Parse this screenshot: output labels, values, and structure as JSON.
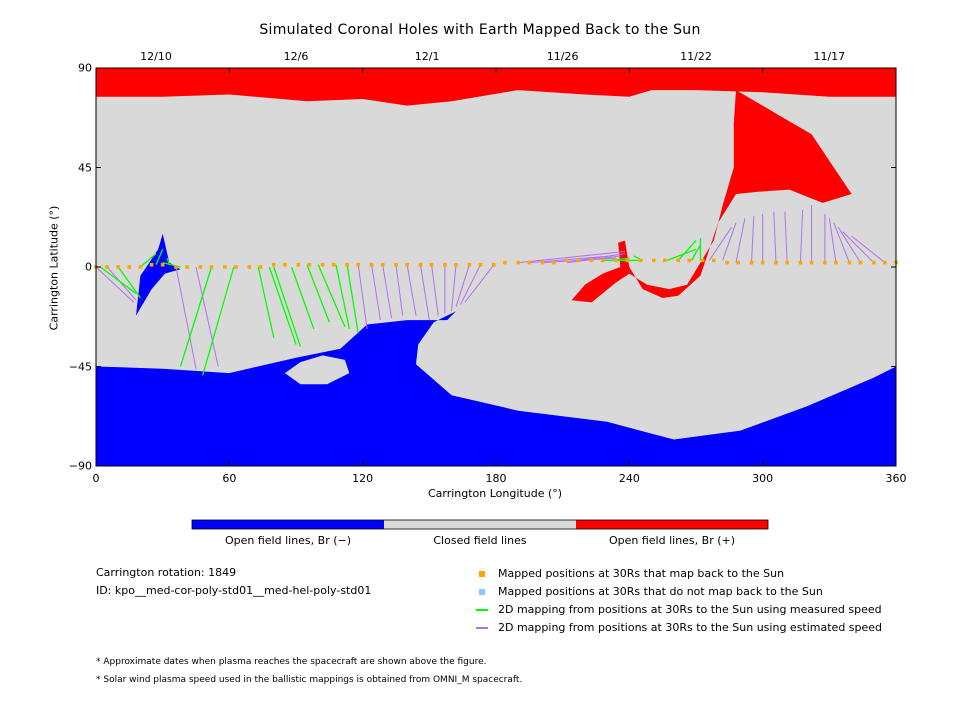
{
  "chart_data": {
    "type": "map",
    "title": "Simulated Coronal Holes with Earth Mapped Back to the Sun",
    "xlabel": "Carrington Longitude (°)",
    "ylabel": "Carrington Latitude (°)",
    "xlim": [
      0,
      360
    ],
    "ylim": [
      -90,
      90
    ],
    "x_ticks": [
      "0",
      "60",
      "120",
      "180",
      "240",
      "300",
      "360"
    ],
    "y_ticks": [
      "90",
      "45",
      "0",
      "−45",
      "−90"
    ],
    "top_date_ticks": [
      {
        "lon": 27,
        "label": "12/10"
      },
      {
        "lon": 90,
        "label": "12/6"
      },
      {
        "lon": 149,
        "label": "12/1"
      },
      {
        "lon": 210,
        "label": "11/26"
      },
      {
        "lon": 270,
        "label": "11/22"
      },
      {
        "lon": 330,
        "label": "11/17"
      }
    ],
    "colorbar": [
      {
        "label": "Open field lines, Br (−)",
        "color": "#0000ff"
      },
      {
        "label": "Closed field lines",
        "color": "#d9d9d9"
      },
      {
        "label": "Open field lines, Br (+)",
        "color": "#ff0000"
      }
    ],
    "info": {
      "rotation": "Carrington rotation: 1849",
      "id": "ID: kpo__med-cor-poly-std01__med-hel-poly-std01"
    },
    "legend": [
      {
        "label": "Mapped positions at 30Rs that map back to the Sun",
        "color": "#ffa500",
        "kind": "square"
      },
      {
        "label": "Mapped positions at 30Rs that do not map back to the Sun",
        "color": "#87cefa",
        "kind": "square"
      },
      {
        "label": "2D mapping from positions at 30Rs to the Sun using measured speed",
        "color": "#00ff00",
        "kind": "line"
      },
      {
        "label": "2D mapping from positions at 30Rs to the Sun using estimated speed",
        "color": "#b070f0",
        "kind": "line"
      }
    ],
    "footnotes": [
      "* Approximate dates when plasma reaches the spacecraft are shown above the figure.",
      "* Solar wind plasma speed used in the ballistic mappings is obtained from OMNI_M spacecraft."
    ],
    "regions": {
      "positive": [
        [
          [
            0,
            90
          ],
          [
            360,
            90
          ],
          [
            360,
            77
          ],
          [
            330,
            77
          ],
          [
            300,
            79
          ],
          [
            270,
            80
          ],
          [
            250,
            80
          ],
          [
            240,
            77
          ],
          [
            220,
            78
          ],
          [
            190,
            80
          ],
          [
            160,
            75
          ],
          [
            140,
            73
          ],
          [
            120,
            76
          ],
          [
            95,
            75
          ],
          [
            60,
            78
          ],
          [
            30,
            77
          ],
          [
            0,
            77
          ]
        ],
        [
          [
            288,
            80
          ],
          [
            305,
            70
          ],
          [
            322,
            60
          ],
          [
            332,
            45
          ],
          [
            340,
            33
          ],
          [
            327,
            29
          ],
          [
            312,
            35
          ],
          [
            298,
            34
          ],
          [
            288,
            33
          ],
          [
            280,
            20
          ],
          [
            272,
            -4
          ],
          [
            262,
            -13
          ],
          [
            255,
            -14
          ],
          [
            246,
            -10
          ],
          [
            240,
            0
          ],
          [
            238,
            12
          ],
          [
            235,
            11
          ],
          [
            236,
            0
          ],
          [
            228,
            -3
          ],
          [
            220,
            -8
          ],
          [
            214,
            -15
          ],
          [
            223,
            -16
          ],
          [
            234,
            -7
          ],
          [
            240,
            -3
          ],
          [
            248,
            -8
          ],
          [
            258,
            -10
          ],
          [
            266,
            -8
          ],
          [
            272,
            2
          ],
          [
            278,
            12
          ],
          [
            282,
            28
          ],
          [
            287,
            45
          ],
          [
            287,
            65
          ]
        ]
      ],
      "negative": [
        [
          [
            0,
            -45
          ],
          [
            30,
            -46
          ],
          [
            60,
            -48
          ],
          [
            90,
            -41
          ],
          [
            110,
            -37
          ],
          [
            122,
            -26
          ],
          [
            140,
            -24
          ],
          [
            158,
            -24
          ],
          [
            162,
            -20
          ],
          [
            152,
            -25
          ],
          [
            145,
            -35
          ],
          [
            144,
            -44
          ],
          [
            160,
            -58
          ],
          [
            190,
            -65
          ],
          [
            230,
            -70
          ],
          [
            260,
            -78
          ],
          [
            290,
            -74
          ],
          [
            320,
            -63
          ],
          [
            350,
            -50
          ],
          [
            360,
            -45
          ],
          [
            360,
            -90
          ],
          [
            0,
            -90
          ]
        ],
        [
          [
            18,
            -22
          ],
          [
            20,
            -4
          ],
          [
            24,
            2
          ],
          [
            28,
            8
          ],
          [
            30,
            15
          ],
          [
            33,
            2
          ],
          [
            38,
            -1
          ],
          [
            31,
            -3
          ],
          [
            25,
            -10
          ]
        ]
      ],
      "closed_hole": [
        [
          85,
          -48
        ],
        [
          92,
          -43
        ],
        [
          102,
          -40
        ],
        [
          112,
          -42
        ],
        [
          114,
          -48
        ],
        [
          104,
          -53
        ],
        [
          92,
          -53
        ]
      ]
    },
    "mapped_points_lon": [
      0,
      5,
      10,
      15,
      20,
      25,
      30,
      36,
      41,
      47,
      52,
      58,
      63,
      69,
      74,
      80,
      85,
      91,
      96,
      102,
      107,
      113,
      118,
      124,
      129,
      135,
      140,
      146,
      151,
      157,
      162,
      168,
      173,
      179,
      184,
      190,
      195,
      201,
      206,
      212,
      217,
      223,
      228,
      234,
      239,
      245,
      251,
      256,
      262,
      267,
      273,
      278,
      284,
      289,
      295,
      300,
      306,
      311,
      317,
      322,
      328,
      333,
      339,
      344,
      350,
      355,
      360
    ],
    "mapped_points_lat": [
      0,
      0,
      0,
      0,
      0,
      1,
      1,
      0,
      0,
      0,
      0,
      0,
      0,
      0,
      0,
      1,
      1,
      1,
      1,
      1,
      1,
      1,
      1,
      1,
      1,
      1,
      1,
      1,
      1,
      1,
      1,
      1,
      1,
      1,
      2,
      2,
      2,
      2,
      2,
      3,
      3,
      3,
      3,
      3,
      3,
      3,
      3,
      3,
      3,
      3,
      3,
      3,
      2,
      2,
      2,
      2,
      2,
      2,
      2,
      2,
      2,
      2,
      2,
      2,
      2,
      2,
      2
    ],
    "mapping_lines_measured": [
      [
        [
          2,
          0
        ],
        [
          18,
          -12
        ]
      ],
      [
        [
          10,
          0
        ],
        [
          20,
          -14
        ]
      ],
      [
        [
          20,
          0
        ],
        [
          27,
          6
        ]
      ],
      [
        [
          27,
          1
        ],
        [
          30,
          8
        ]
      ],
      [
        [
          33,
          1
        ],
        [
          32,
          4
        ]
      ],
      [
        [
          38,
          0
        ],
        [
          30,
          2
        ]
      ],
      [
        [
          52,
          0
        ],
        [
          38,
          -45
        ]
      ],
      [
        [
          62,
          0
        ],
        [
          48,
          -49
        ]
      ],
      [
        [
          73,
          0
        ],
        [
          80,
          -32
        ]
      ],
      [
        [
          78,
          0
        ],
        [
          90,
          -35
        ]
      ],
      [
        [
          80,
          0
        ],
        [
          92,
          -36
        ]
      ],
      [
        [
          88,
          0
        ],
        [
          98,
          -28
        ]
      ],
      [
        [
          95,
          1
        ],
        [
          105,
          -25
        ]
      ],
      [
        [
          100,
          1
        ],
        [
          112,
          -27
        ]
      ],
      [
        [
          108,
          1
        ],
        [
          114,
          -28
        ]
      ],
      [
        [
          113,
          1
        ],
        [
          118,
          -30
        ]
      ],
      [
        [
          228,
          3
        ],
        [
          238,
          3
        ]
      ],
      [
        [
          232,
          3
        ],
        [
          240,
          4
        ]
      ],
      [
        [
          238,
          3
        ],
        [
          244,
          3
        ]
      ],
      [
        [
          246,
          3
        ],
        [
          242,
          5
        ]
      ],
      [
        [
          257,
          3
        ],
        [
          270,
          8
        ]
      ],
      [
        [
          262,
          3
        ],
        [
          270,
          12
        ]
      ],
      [
        [
          268,
          3
        ],
        [
          272,
          10
        ]
      ],
      [
        [
          272,
          3
        ],
        [
          272,
          13
        ]
      ]
    ],
    "mapping_lines_estimated": [
      [
        [
          0,
          0
        ],
        [
          17,
          -16
        ]
      ],
      [
        [
          5,
          0
        ],
        [
          18,
          -15
        ]
      ],
      [
        [
          36,
          0
        ],
        [
          45,
          -46
        ]
      ],
      [
        [
          45,
          0
        ],
        [
          55,
          -45
        ]
      ],
      [
        [
          118,
          1
        ],
        [
          122,
          -28
        ]
      ],
      [
        [
          124,
          1
        ],
        [
          128,
          -24
        ]
      ],
      [
        [
          129,
          1
        ],
        [
          133,
          -23
        ]
      ],
      [
        [
          135,
          1
        ],
        [
          138,
          -22
        ]
      ],
      [
        [
          140,
          1
        ],
        [
          144,
          -22
        ]
      ],
      [
        [
          146,
          1
        ],
        [
          150,
          -24
        ]
      ],
      [
        [
          151,
          1
        ],
        [
          154,
          -22
        ]
      ],
      [
        [
          157,
          1
        ],
        [
          157,
          -21
        ]
      ],
      [
        [
          162,
          1
        ],
        [
          160,
          -20
        ]
      ],
      [
        [
          168,
          1
        ],
        [
          162,
          -18
        ]
      ],
      [
        [
          173,
          1
        ],
        [
          164,
          -17
        ]
      ],
      [
        [
          179,
          1
        ],
        [
          166,
          -16
        ]
      ],
      [
        [
          190,
          2
        ],
        [
          238,
          7
        ]
      ],
      [
        [
          195,
          2
        ],
        [
          232,
          5
        ]
      ],
      [
        [
          201,
          2
        ],
        [
          234,
          4
        ]
      ],
      [
        [
          212,
          2
        ],
        [
          236,
          5
        ]
      ],
      [
        [
          217,
          3
        ],
        [
          238,
          6
        ]
      ],
      [
        [
          276,
          3
        ],
        [
          286,
          18
        ]
      ],
      [
        [
          282,
          3
        ],
        [
          288,
          20
        ]
      ],
      [
        [
          288,
          2
        ],
        [
          292,
          22
        ]
      ],
      [
        [
          295,
          2
        ],
        [
          296,
          23
        ]
      ],
      [
        [
          300,
          2
        ],
        [
          300,
          24
        ]
      ],
      [
        [
          306,
          2
        ],
        [
          305,
          25
        ]
      ],
      [
        [
          311,
          2
        ],
        [
          310,
          25
        ]
      ],
      [
        [
          317,
          2
        ],
        [
          318,
          26
        ]
      ],
      [
        [
          322,
          2
        ],
        [
          322,
          28
        ]
      ],
      [
        [
          328,
          2
        ],
        [
          328,
          24
        ]
      ],
      [
        [
          333,
          2
        ],
        [
          330,
          22
        ]
      ],
      [
        [
          339,
          2
        ],
        [
          332,
          20
        ]
      ],
      [
        [
          344,
          2
        ],
        [
          334,
          18
        ]
      ],
      [
        [
          350,
          2
        ],
        [
          336,
          16
        ]
      ],
      [
        [
          355,
          2
        ],
        [
          340,
          14
        ]
      ]
    ]
  }
}
